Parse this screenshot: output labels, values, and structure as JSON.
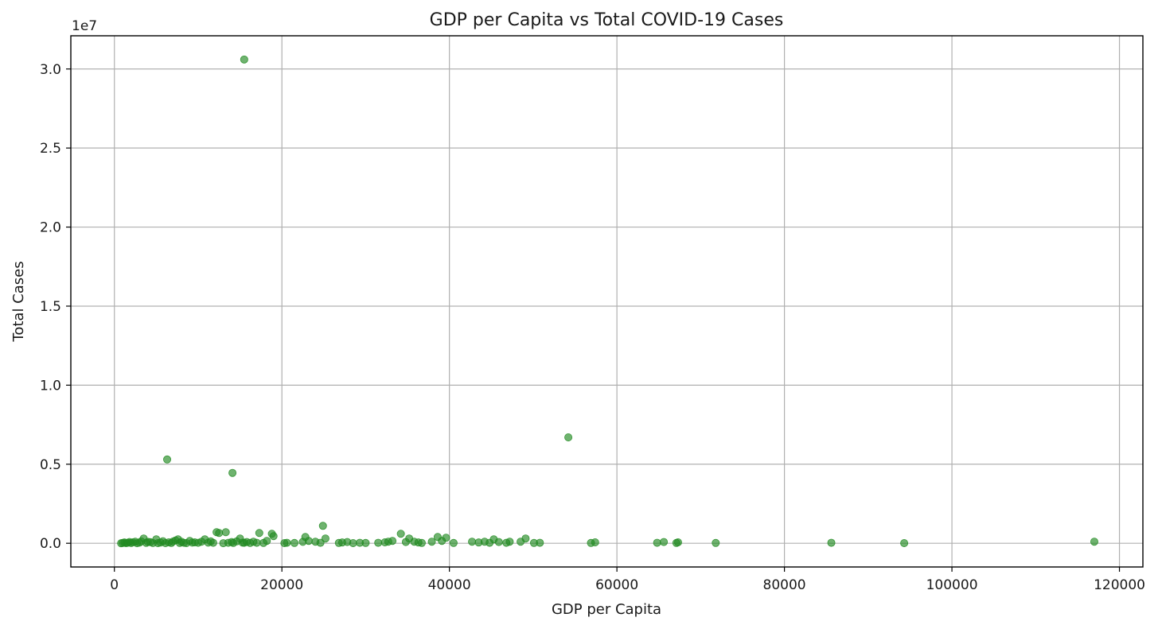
{
  "chart_data": {
    "type": "scatter",
    "title": "GDP per Capita vs Total COVID-19 Cases",
    "xlabel": "GDP per Capita",
    "ylabel": "Total Cases",
    "y_offset_label": "1e7",
    "xlim": [
      -5200,
      122800
    ],
    "ylim": [
      -1500000,
      32100000
    ],
    "x_ticks": [
      0,
      20000,
      40000,
      60000,
      80000,
      100000,
      120000
    ],
    "x_tick_labels": [
      "0",
      "20000",
      "40000",
      "60000",
      "80000",
      "100000",
      "120000"
    ],
    "y_ticks": [
      0,
      5000000,
      10000000,
      15000000,
      20000000,
      25000000,
      30000000
    ],
    "y_tick_labels": [
      "0.0",
      "0.5",
      "1.0",
      "1.5",
      "2.0",
      "2.5",
      "3.0"
    ],
    "grid": true,
    "marker_color": "#228b22",
    "x": [
      800,
      1000,
      1200,
      1400,
      1600,
      1800,
      2000,
      2200,
      2500,
      2700,
      3000,
      3200,
      3500,
      3800,
      4000,
      4300,
      4600,
      5000,
      5200,
      5500,
      5800,
      6100,
      6500,
      6800,
      7000,
      7300,
      7600,
      7800,
      8000,
      8300,
      8600,
      9000,
      9300,
      9600,
      10000,
      10400,
      10800,
      11200,
      11500,
      11800,
      12200,
      12500,
      13000,
      13300,
      13600,
      14000,
      14200,
      14600,
      15000,
      15300,
      15500,
      15800,
      16200,
      16600,
      17000,
      17300,
      17800,
      18200,
      18800,
      19000,
      20300,
      20600,
      21500,
      22500,
      22800,
      23200,
      24000,
      24600,
      24900,
      25200,
      26800,
      27200,
      27800,
      28500,
      29300,
      30000,
      31500,
      32300,
      32700,
      33200,
      34200,
      34800,
      35200,
      35800,
      36300,
      36700,
      37900,
      38600,
      39100,
      39600,
      40500,
      42700,
      43500,
      44200,
      44800,
      45300,
      45900,
      46800,
      47200,
      48500,
      49100,
      50100,
      50800,
      56900,
      57400,
      64800,
      65600,
      67100,
      67300,
      71800,
      85600,
      94300,
      117000,
      6300,
      14100,
      15500,
      54200
    ],
    "y": [
      0,
      20000,
      50000,
      10000,
      30000,
      80000,
      15000,
      60000,
      100000,
      5000,
      40000,
      120000,
      300000,
      25000,
      90000,
      70000,
      15000,
      250000,
      10000,
      45000,
      130000,
      8000,
      60000,
      20000,
      110000,
      180000,
      250000,
      20000,
      100000,
      30000,
      9000,
      150000,
      40000,
      60000,
      30000,
      100000,
      250000,
      40000,
      120000,
      30000,
      700000,
      650000,
      5000,
      700000,
      30000,
      80000,
      20000,
      120000,
      300000,
      40000,
      30000,
      80000,
      20000,
      100000,
      30000,
      650000,
      20000,
      150000,
      600000,
      450000,
      10000,
      30000,
      20000,
      90000,
      400000,
      150000,
      100000,
      30000,
      1100000,
      300000,
      20000,
      50000,
      80000,
      10000,
      30000,
      20000,
      30000,
      60000,
      100000,
      150000,
      600000,
      80000,
      300000,
      100000,
      50000,
      20000,
      100000,
      400000,
      150000,
      350000,
      20000,
      100000,
      50000,
      100000,
      30000,
      250000,
      80000,
      30000,
      100000,
      100000,
      300000,
      20000,
      30000,
      20000,
      60000,
      30000,
      80000,
      20000,
      60000,
      20000,
      30000,
      10000,
      100000,
      5300000,
      4450000,
      30600000,
      6700000
    ]
  }
}
